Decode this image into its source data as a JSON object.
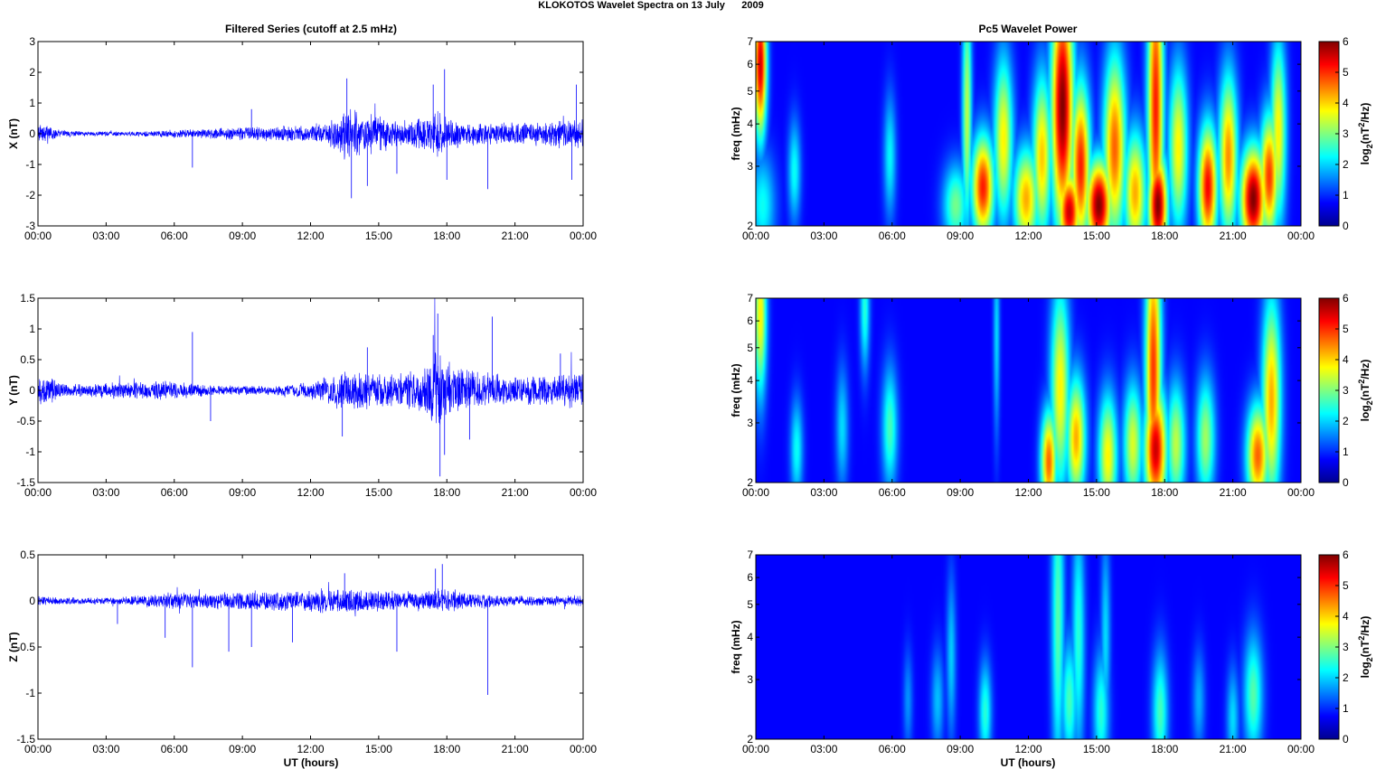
{
  "figure": {
    "title": "KLOKOTOS Wavelet Spectra on 13 July      2009",
    "left_column_title": "Filtered Series (cutoff at 2.5 mHz)",
    "right_column_title": "Pc5 Wavelet Power",
    "x_axis_label": "UT (hours)"
  },
  "chart_data": [
    {
      "type": "line",
      "title": "Filtered Series (cutoff at 2.5 mHz)",
      "ylabel": "X (nT)",
      "xlabel": "",
      "ylim": [
        -3,
        3
      ],
      "yticks": [
        "3",
        "2",
        "1",
        "0",
        "-1",
        "-2",
        "-3"
      ],
      "xlim_hours": [
        0,
        24
      ],
      "xticks": [
        "00:00",
        "03:00",
        "06:00",
        "09:00",
        "12:00",
        "15:00",
        "18:00",
        "21:00",
        "00:00"
      ],
      "color": "#0000ff",
      "noise_envelope_hours": [
        0,
        1,
        2,
        3,
        4,
        5,
        6,
        7,
        8,
        9,
        10,
        11,
        12,
        13,
        13.5,
        14,
        15,
        16,
        17,
        17.5,
        18,
        19,
        20,
        21,
        22,
        23,
        24
      ],
      "noise_envelope_amp": [
        0.4,
        0.15,
        0.08,
        0.08,
        0.08,
        0.1,
        0.15,
        0.15,
        0.2,
        0.25,
        0.25,
        0.3,
        0.3,
        0.5,
        0.9,
        0.8,
        0.6,
        0.5,
        0.6,
        0.9,
        0.6,
        0.4,
        0.4,
        0.4,
        0.45,
        0.5,
        0.6
      ],
      "spikes": [
        {
          "x": 13.6,
          "y": 1.8
        },
        {
          "x": 13.8,
          "y": -2.1
        },
        {
          "x": 14.5,
          "y": -1.7
        },
        {
          "x": 17.4,
          "y": 1.6
        },
        {
          "x": 17.9,
          "y": 2.1
        },
        {
          "x": 18.0,
          "y": -1.5
        },
        {
          "x": 19.8,
          "y": -1.8
        },
        {
          "x": 23.7,
          "y": 1.6
        },
        {
          "x": 23.5,
          "y": -1.5
        },
        {
          "x": 6.8,
          "y": -1.1
        },
        {
          "x": 9.4,
          "y": 0.8
        },
        {
          "x": 15.8,
          "y": -1.3
        }
      ]
    },
    {
      "type": "line",
      "ylabel": "Y (nT)",
      "xlabel": "",
      "ylim": [
        -1.5,
        1.5
      ],
      "yticks": [
        "1.5",
        "1",
        "0.5",
        "0",
        "-0.5",
        "-1",
        "-1.5"
      ],
      "xlim_hours": [
        0,
        24
      ],
      "xticks": [
        "00:00",
        "03:00",
        "06:00",
        "09:00",
        "12:00",
        "15:00",
        "18:00",
        "21:00",
        "00:00"
      ],
      "color": "#0000ff",
      "noise_envelope_hours": [
        0,
        1,
        2,
        3,
        4,
        5,
        6,
        7,
        8,
        9,
        10,
        11,
        12,
        13,
        14,
        15,
        16,
        17,
        17.5,
        18,
        19,
        20,
        21,
        22,
        23,
        24
      ],
      "noise_envelope_amp": [
        0.35,
        0.12,
        0.12,
        0.15,
        0.15,
        0.18,
        0.15,
        0.12,
        0.08,
        0.08,
        0.08,
        0.1,
        0.15,
        0.3,
        0.35,
        0.3,
        0.3,
        0.4,
        0.8,
        0.5,
        0.35,
        0.3,
        0.25,
        0.25,
        0.3,
        0.35
      ],
      "spikes": [
        {
          "x": 17.6,
          "y": 1.25
        },
        {
          "x": 17.7,
          "y": -1.4
        },
        {
          "x": 17.4,
          "y": 0.9
        },
        {
          "x": 17.9,
          "y": -1.05
        },
        {
          "x": 20.0,
          "y": 1.2
        },
        {
          "x": 13.4,
          "y": -0.75
        },
        {
          "x": 6.8,
          "y": 0.95
        },
        {
          "x": 7.6,
          "y": -0.5
        },
        {
          "x": 19.0,
          "y": -0.8
        },
        {
          "x": 23.0,
          "y": 0.6
        },
        {
          "x": 14.5,
          "y": 0.7
        }
      ]
    },
    {
      "type": "line",
      "ylabel": "Z (nT)",
      "xlabel": "UT (hours)",
      "ylim": [
        -1.5,
        0.5
      ],
      "yticks": [
        "0.5",
        "0",
        "-0.5",
        "-1",
        "-1.5"
      ],
      "xlim_hours": [
        0,
        24
      ],
      "xticks": [
        "00:00",
        "03:00",
        "06:00",
        "09:00",
        "12:00",
        "15:00",
        "18:00",
        "21:00",
        "00:00"
      ],
      "color": "#0000ff",
      "noise_envelope_hours": [
        0,
        1,
        2,
        3,
        4,
        5,
        6,
        7,
        8,
        9,
        10,
        11,
        12,
        13,
        14,
        15,
        16,
        17,
        18,
        19,
        20,
        21,
        22,
        23,
        24
      ],
      "noise_envelope_amp": [
        0.06,
        0.04,
        0.04,
        0.04,
        0.05,
        0.08,
        0.1,
        0.1,
        0.1,
        0.12,
        0.12,
        0.12,
        0.12,
        0.15,
        0.15,
        0.12,
        0.12,
        0.12,
        0.15,
        0.1,
        0.08,
        0.06,
        0.06,
        0.06,
        0.07
      ],
      "spikes": [
        {
          "x": 6.8,
          "y": -0.72
        },
        {
          "x": 19.8,
          "y": -1.02
        },
        {
          "x": 5.6,
          "y": -0.4
        },
        {
          "x": 8.4,
          "y": -0.55
        },
        {
          "x": 9.4,
          "y": -0.5
        },
        {
          "x": 11.2,
          "y": -0.45
        },
        {
          "x": 15.8,
          "y": -0.55
        },
        {
          "x": 17.8,
          "y": 0.4
        },
        {
          "x": 17.5,
          "y": 0.35
        },
        {
          "x": 13.5,
          "y": 0.3
        },
        {
          "x": 3.5,
          "y": -0.25
        }
      ]
    },
    {
      "type": "heatmap",
      "title": "Pc5 Wavelet Power",
      "ylabel": "freq (mHz)",
      "xlabel": "",
      "ylim": [
        2,
        7
      ],
      "yscale": "log",
      "yticks": [
        "7",
        "6",
        "5",
        "4",
        "3",
        "2"
      ],
      "xlim_hours": [
        0,
        24
      ],
      "xticks": [
        "00:00",
        "03:00",
        "06:00",
        "09:00",
        "12:00",
        "15:00",
        "18:00",
        "21:00",
        "00:00"
      ],
      "colorbar_label": "log2(nT2/Hz)",
      "clim": [
        0,
        6
      ],
      "colorbar_ticks": [
        "6",
        "5",
        "4",
        "3",
        "2",
        "1",
        "0"
      ],
      "colormap": "jet",
      "blobs": [
        {
          "t": 0.2,
          "f": 6.0,
          "amp": 5.5,
          "wt": 0.2,
          "wf": 0.35
        },
        {
          "t": 0.3,
          "f": 2.3,
          "amp": 1.8,
          "wt": 0.4,
          "wf": 0.25
        },
        {
          "t": 1.7,
          "f": 2.9,
          "amp": 1.8,
          "wt": 0.2,
          "wf": 0.25
        },
        {
          "t": 5.9,
          "f": 3.2,
          "amp": 1.7,
          "wt": 0.2,
          "wf": 0.3
        },
        {
          "t": 8.8,
          "f": 2.3,
          "amp": 2.5,
          "wt": 0.4,
          "wf": 0.2
        },
        {
          "t": 9.3,
          "f": 4.3,
          "amp": 3.0,
          "wt": 0.15,
          "wf": 0.6
        },
        {
          "t": 10.0,
          "f": 2.6,
          "amp": 5.0,
          "wt": 0.35,
          "wf": 0.25
        },
        {
          "t": 10.9,
          "f": 3.6,
          "amp": 3.5,
          "wt": 0.3,
          "wf": 0.4
        },
        {
          "t": 11.9,
          "f": 2.4,
          "amp": 4.0,
          "wt": 0.4,
          "wf": 0.25
        },
        {
          "t": 12.6,
          "f": 3.2,
          "amp": 3.8,
          "wt": 0.3,
          "wf": 0.4
        },
        {
          "t": 13.5,
          "f": 4.5,
          "amp": 6.0,
          "wt": 0.35,
          "wf": 0.6
        },
        {
          "t": 13.8,
          "f": 2.2,
          "amp": 5.5,
          "wt": 0.35,
          "wf": 0.2
        },
        {
          "t": 14.3,
          "f": 3.0,
          "amp": 5.0,
          "wt": 0.3,
          "wf": 0.4
        },
        {
          "t": 15.1,
          "f": 2.3,
          "amp": 6.0,
          "wt": 0.4,
          "wf": 0.22
        },
        {
          "t": 15.8,
          "f": 3.4,
          "amp": 4.5,
          "wt": 0.35,
          "wf": 0.45
        },
        {
          "t": 16.7,
          "f": 2.5,
          "amp": 4.0,
          "wt": 0.35,
          "wf": 0.3
        },
        {
          "t": 17.7,
          "f": 2.3,
          "amp": 6.0,
          "wt": 0.3,
          "wf": 0.25
        },
        {
          "t": 17.6,
          "f": 4.5,
          "amp": 5.0,
          "wt": 0.25,
          "wf": 0.8
        },
        {
          "t": 18.6,
          "f": 3.4,
          "amp": 3.5,
          "wt": 0.3,
          "wf": 0.4
        },
        {
          "t": 19.9,
          "f": 2.6,
          "amp": 5.2,
          "wt": 0.3,
          "wf": 0.3
        },
        {
          "t": 20.8,
          "f": 3.2,
          "amp": 4.2,
          "wt": 0.3,
          "wf": 0.4
        },
        {
          "t": 21.9,
          "f": 2.4,
          "amp": 6.0,
          "wt": 0.4,
          "wf": 0.25
        },
        {
          "t": 22.6,
          "f": 2.8,
          "amp": 4.8,
          "wt": 0.3,
          "wf": 0.3
        },
        {
          "t": 23.0,
          "f": 3.8,
          "amp": 3.5,
          "wt": 0.25,
          "wf": 0.45
        }
      ]
    },
    {
      "type": "heatmap",
      "ylabel": "freq (mHz)",
      "xlabel": "",
      "ylim": [
        2,
        7
      ],
      "yscale": "log",
      "yticks": [
        "7",
        "6",
        "5",
        "4",
        "3",
        "2"
      ],
      "xlim_hours": [
        0,
        24
      ],
      "xticks": [
        "00:00",
        "03:00",
        "06:00",
        "09:00",
        "12:00",
        "15:00",
        "18:00",
        "21:00",
        "00:00"
      ],
      "colorbar_label": "log2(nT2/Hz)",
      "clim": [
        0,
        6
      ],
      "colorbar_ticks": [
        "6",
        "5",
        "4",
        "3",
        "2",
        "1",
        "0"
      ],
      "colormap": "jet",
      "blobs": [
        {
          "t": 0.2,
          "f": 6.3,
          "amp": 3.5,
          "wt": 0.2,
          "wf": 0.4
        },
        {
          "t": 1.8,
          "f": 2.5,
          "amp": 1.8,
          "wt": 0.2,
          "wf": 0.25
        },
        {
          "t": 3.8,
          "f": 2.9,
          "amp": 1.5,
          "wt": 0.2,
          "wf": 0.3
        },
        {
          "t": 4.8,
          "f": 6.5,
          "amp": 2.0,
          "wt": 0.15,
          "wf": 0.3
        },
        {
          "t": 5.9,
          "f": 2.9,
          "amp": 2.2,
          "wt": 0.25,
          "wf": 0.3
        },
        {
          "t": 10.6,
          "f": 5.5,
          "amp": 1.5,
          "wt": 0.1,
          "wf": 0.5
        },
        {
          "t": 12.9,
          "f": 2.3,
          "amp": 4.5,
          "wt": 0.25,
          "wf": 0.25
        },
        {
          "t": 13.4,
          "f": 3.8,
          "amp": 3.5,
          "wt": 0.3,
          "wf": 0.5
        },
        {
          "t": 14.1,
          "f": 2.7,
          "amp": 4.0,
          "wt": 0.3,
          "wf": 0.3
        },
        {
          "t": 15.5,
          "f": 2.4,
          "amp": 3.5,
          "wt": 0.3,
          "wf": 0.3
        },
        {
          "t": 16.6,
          "f": 2.6,
          "amp": 3.2,
          "wt": 0.3,
          "wf": 0.3
        },
        {
          "t": 17.6,
          "f": 2.5,
          "amp": 5.5,
          "wt": 0.35,
          "wf": 0.3
        },
        {
          "t": 17.5,
          "f": 4.3,
          "amp": 4.8,
          "wt": 0.25,
          "wf": 0.7
        },
        {
          "t": 18.5,
          "f": 2.6,
          "amp": 3.0,
          "wt": 0.3,
          "wf": 0.3
        },
        {
          "t": 19.8,
          "f": 2.7,
          "amp": 2.8,
          "wt": 0.3,
          "wf": 0.3
        },
        {
          "t": 22.1,
          "f": 2.4,
          "amp": 4.5,
          "wt": 0.35,
          "wf": 0.25
        },
        {
          "t": 22.7,
          "f": 3.5,
          "amp": 4.0,
          "wt": 0.3,
          "wf": 0.5
        }
      ]
    },
    {
      "type": "heatmap",
      "ylabel": "freq (mHz)",
      "xlabel": "UT (hours)",
      "ylim": [
        2,
        7
      ],
      "yscale": "log",
      "yticks": [
        "7",
        "6",
        "5",
        "4",
        "3",
        "2"
      ],
      "xlim_hours": [
        0,
        24
      ],
      "xticks": [
        "00:00",
        "03:00",
        "06:00",
        "09:00",
        "12:00",
        "15:00",
        "18:00",
        "21:00",
        "00:00"
      ],
      "colorbar_label": "log2(nT2/Hz)",
      "clim": [
        0,
        6
      ],
      "colorbar_ticks": [
        "6",
        "5",
        "4",
        "3",
        "2",
        "1",
        "0"
      ],
      "colormap": "jet",
      "blobs": [
        {
          "t": 6.7,
          "f": 2.6,
          "amp": 1.0,
          "wt": 0.15,
          "wf": 0.25
        },
        {
          "t": 8.0,
          "f": 2.6,
          "amp": 1.3,
          "wt": 0.2,
          "wf": 0.25
        },
        {
          "t": 8.6,
          "f": 3.5,
          "amp": 1.4,
          "wt": 0.15,
          "wf": 0.4
        },
        {
          "t": 10.1,
          "f": 2.4,
          "amp": 2.0,
          "wt": 0.2,
          "wf": 0.25
        },
        {
          "t": 13.3,
          "f": 4.5,
          "amp": 2.3,
          "wt": 0.2,
          "wf": 0.8
        },
        {
          "t": 13.8,
          "f": 2.6,
          "amp": 2.2,
          "wt": 0.25,
          "wf": 0.3
        },
        {
          "t": 14.2,
          "f": 4.0,
          "amp": 2.0,
          "wt": 0.2,
          "wf": 0.6
        },
        {
          "t": 15.2,
          "f": 2.4,
          "amp": 2.0,
          "wt": 0.25,
          "wf": 0.3
        },
        {
          "t": 15.4,
          "f": 4.0,
          "amp": 1.5,
          "wt": 0.15,
          "wf": 0.5
        },
        {
          "t": 17.8,
          "f": 2.4,
          "amp": 2.2,
          "wt": 0.25,
          "wf": 0.3
        },
        {
          "t": 19.5,
          "f": 2.6,
          "amp": 1.2,
          "wt": 0.2,
          "wf": 0.25
        },
        {
          "t": 21.0,
          "f": 2.3,
          "amp": 1.5,
          "wt": 0.2,
          "wf": 0.25
        },
        {
          "t": 21.9,
          "f": 2.7,
          "amp": 2.3,
          "wt": 0.3,
          "wf": 0.3
        }
      ]
    }
  ]
}
